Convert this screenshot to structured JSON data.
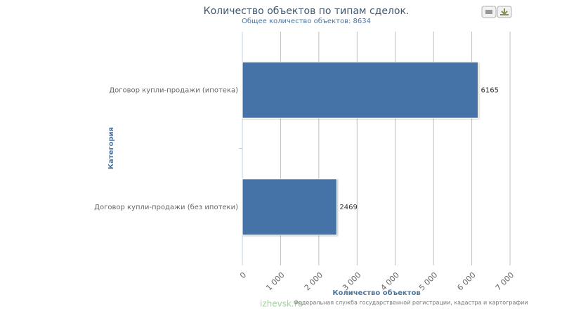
{
  "chart_data": {
    "type": "bar",
    "orientation": "horizontal",
    "title": "Количество объектов по типам сделок.",
    "subtitle": "Общее количество объектов: 8634",
    "categories": [
      "Договор купли-продажи (ипотека)",
      "Договор купли-продажи (без ипотеки)"
    ],
    "values": [
      6165,
      2469
    ],
    "color": "#4572a7",
    "xlim": [
      0,
      7000
    ],
    "xticks": [
      0,
      {
        "value": 1000,
        "label": "1 000"
      },
      {
        "value": 2000,
        "label": "2 000"
      },
      {
        "value": 3000,
        "label": "3 000"
      },
      {
        "value": 4000,
        "label": "4 000"
      },
      {
        "value": 5000,
        "label": "5 000"
      },
      {
        "value": 6000,
        "label": "6 000"
      },
      {
        "value": 7000,
        "label": "7 000"
      }
    ],
    "grid": true,
    "x_axis_label": "Количество объектов",
    "y_axis_label": "Категория",
    "credits": "Федеральная служба государственной регистрации, кадастра и картографии",
    "watermark": "izhevsk.ru"
  }
}
